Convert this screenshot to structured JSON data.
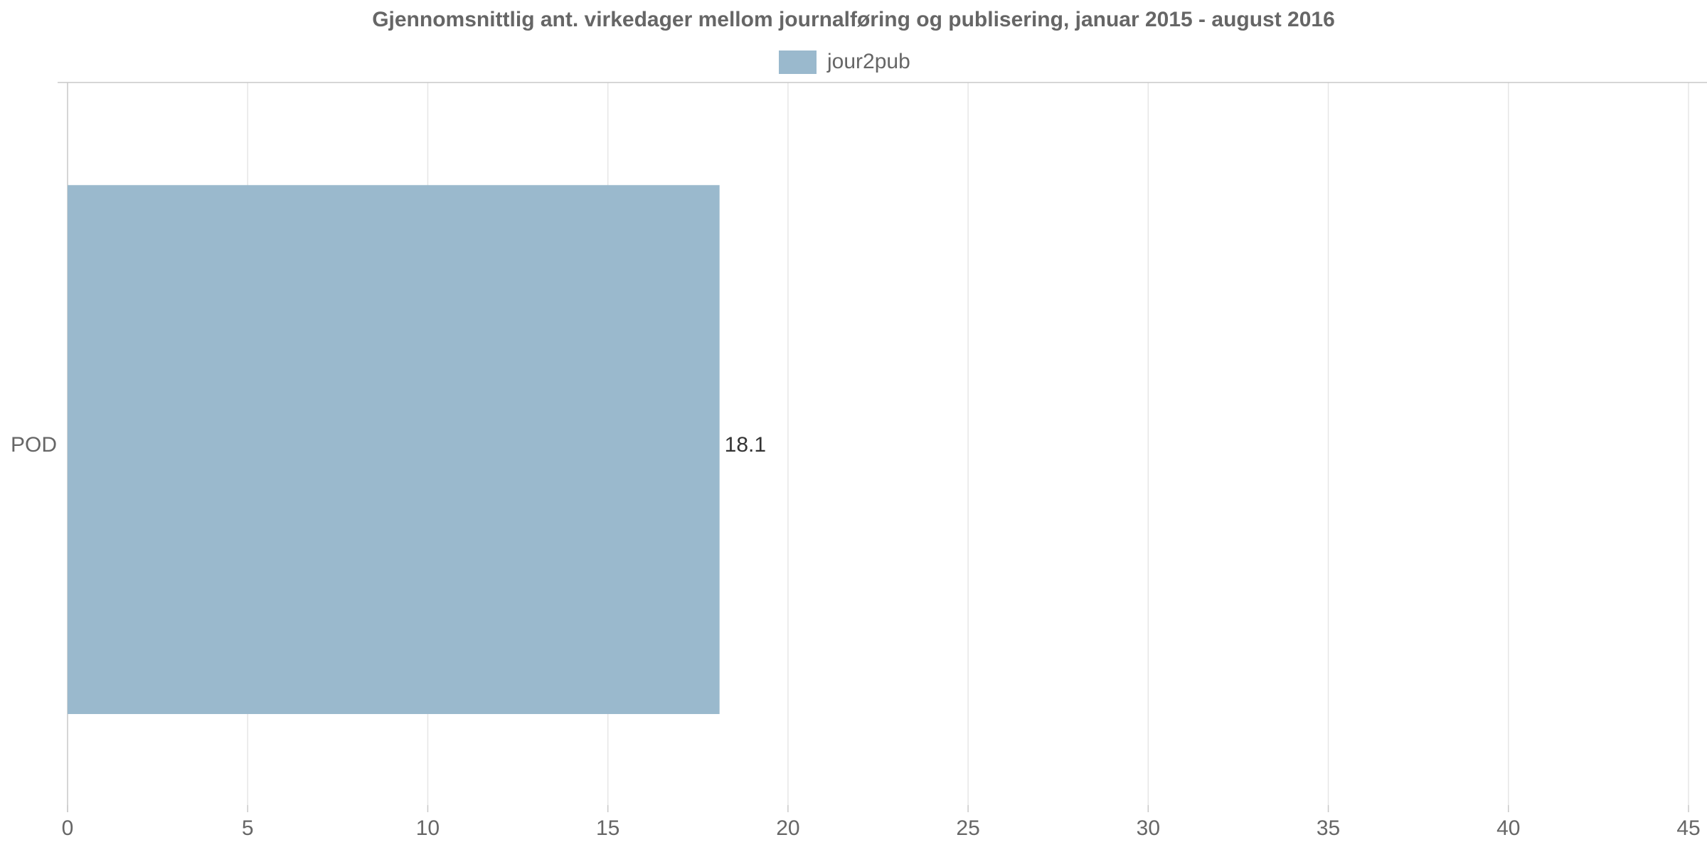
{
  "chart_data": {
    "type": "bar",
    "orientation": "horizontal",
    "title": "Gjennomsnittlig ant. virkedager mellom journalføring og publisering, januar 2015 - august 2016",
    "categories": [
      "POD"
    ],
    "series": [
      {
        "name": "jour2pub",
        "values": [
          18.1
        ],
        "color": "#9ab9cd"
      }
    ],
    "data_labels": [
      "18.1"
    ],
    "x_ticks": [
      0,
      5,
      10,
      15,
      20,
      25,
      30,
      35,
      40,
      45
    ],
    "xlim": [
      0,
      45
    ],
    "xlabel": "",
    "ylabel": "",
    "grid": true,
    "legend_position": "top-center"
  },
  "colors": {
    "title": "#666666",
    "axis_text": "#666666",
    "label_text": "#333333",
    "grid": "#e6e6e6",
    "axis_line": "#c8c8c8"
  }
}
